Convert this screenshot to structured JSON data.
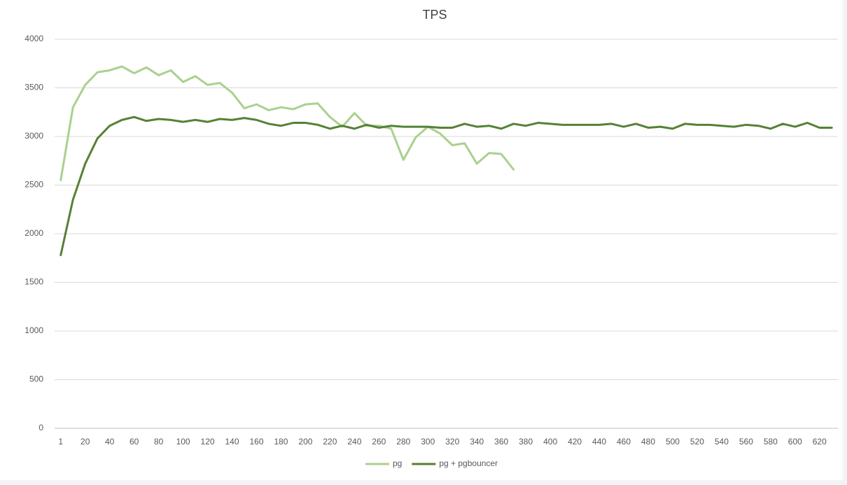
{
  "chart_data": {
    "type": "line",
    "title": "TPS",
    "categories": [
      1,
      null,
      20,
      null,
      40,
      null,
      60,
      null,
      80,
      null,
      100,
      null,
      120,
      null,
      140,
      null,
      160,
      null,
      180,
      null,
      200,
      null,
      220,
      null,
      240,
      null,
      260,
      null,
      280,
      null,
      300,
      null,
      320,
      null,
      340,
      null,
      360,
      null,
      380,
      null,
      400,
      null,
      420,
      null,
      440,
      null,
      460,
      null,
      480,
      null,
      500,
      null,
      520,
      null,
      540,
      null,
      560,
      null,
      580,
      null,
      600,
      null,
      620,
      null
    ],
    "series": [
      {
        "name": "pg",
        "color": "#a9d18e",
        "values": [
          2550,
          3300,
          3530,
          3660,
          3680,
          3720,
          3650,
          3710,
          3630,
          3680,
          3560,
          3620,
          3530,
          3550,
          3450,
          3290,
          3330,
          3270,
          3300,
          3280,
          3330,
          3340,
          3200,
          3100,
          3240,
          3110,
          3110,
          3080,
          2760,
          2990,
          3100,
          3030,
          2910,
          2930,
          2720,
          2830,
          2820,
          2660,
          null,
          null,
          null,
          null,
          null,
          null,
          null,
          null,
          null,
          null,
          null,
          null,
          null,
          null,
          null,
          null,
          null,
          null,
          null,
          null,
          null,
          null,
          null,
          null,
          null,
          null
        ]
      },
      {
        "name": "pg + pgbouncer",
        "color": "#548235",
        "values": [
          1780,
          2350,
          2720,
          2980,
          3110,
          3170,
          3200,
          3160,
          3180,
          3170,
          3150,
          3170,
          3150,
          3180,
          3170,
          3190,
          3170,
          3130,
          3110,
          3140,
          3140,
          3120,
          3080,
          3110,
          3080,
          3120,
          3090,
          3110,
          3100,
          3100,
          3100,
          3090,
          3090,
          3130,
          3100,
          3110,
          3080,
          3130,
          3110,
          3140,
          3130,
          3120,
          3120,
          3120,
          3120,
          3130,
          3100,
          3130,
          3090,
          3100,
          3080,
          3130,
          3120,
          3120,
          3110,
          3100,
          3120,
          3110,
          3080,
          3130,
          3100,
          3140,
          3090,
          3090
        ]
      }
    ],
    "ylim": [
      0,
      4000
    ],
    "yticks": [
      0,
      500,
      1000,
      1500,
      2000,
      2500,
      3000,
      3500,
      4000
    ],
    "grid": true,
    "legend": "bottom"
  }
}
